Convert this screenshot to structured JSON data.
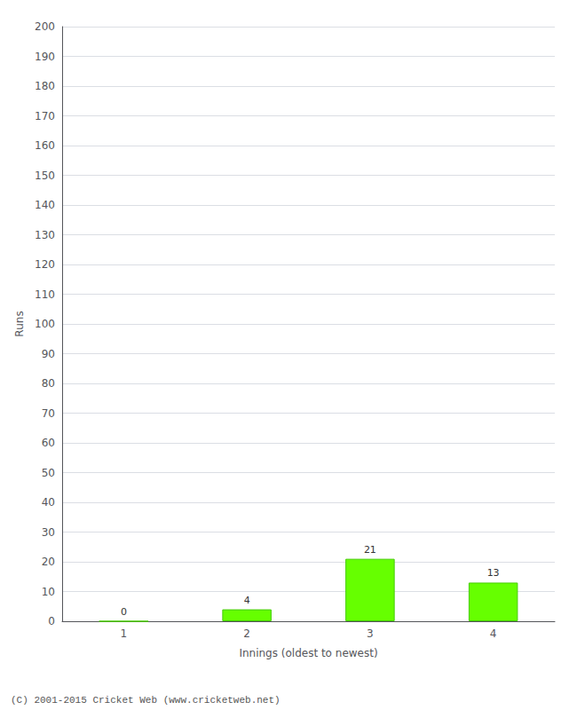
{
  "chart_data": {
    "type": "bar",
    "categories": [
      "1",
      "2",
      "3",
      "4"
    ],
    "values": [
      0,
      4,
      21,
      13
    ],
    "color": "#66ff00",
    "xlabel": "Innings (oldest to newest)",
    "ylabel": "Runs",
    "ylim": [
      0,
      200
    ],
    "yticks": [
      0,
      10,
      20,
      30,
      40,
      50,
      60,
      70,
      80,
      90,
      100,
      110,
      120,
      130,
      140,
      150,
      160,
      170,
      180,
      190,
      200
    ],
    "grid": true,
    "data_labels": true,
    "footer": "(C) 2001-2015 Cricket Web (www.cricketweb.net)"
  }
}
